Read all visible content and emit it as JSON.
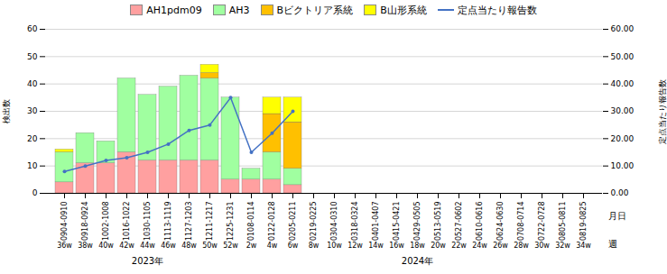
{
  "chart_data": {
    "type": "bar",
    "stacked": true,
    "categories": [
      "0904-0910",
      "0918-0924",
      "1002-1008",
      "1016-1022",
      "1030-1105",
      "1113-1119",
      "1127-1203",
      "1211-1217",
      "1225-1231",
      "0108-0114",
      "0122-0128",
      "0205-0211",
      "0219-0225",
      "0304-0310",
      "0318-0324",
      "0401-0407",
      "0415-0421",
      "0429-0505",
      "0513-0519",
      "0527-0602",
      "0610-0616",
      "0624-0630",
      "0708-0714",
      "0722-0728",
      "0805-0811",
      "0819-0825"
    ],
    "weeks": [
      "36w",
      "38w",
      "40w",
      "42w",
      "44w",
      "46w",
      "48w",
      "50w",
      "52w",
      "2w",
      "4w",
      "6w",
      "8w",
      "10w",
      "12w",
      "14w",
      "16w",
      "18w",
      "20w",
      "22w",
      "24w",
      "26w",
      "28w",
      "30w",
      "32w",
      "34w"
    ],
    "xlabel": "月日",
    "xlabel_week": "週",
    "ylabel": "検出数",
    "y2label": "定点当たり報告数",
    "annotations": [
      {
        "text": "2023年",
        "x": "1030-1105"
      },
      {
        "text": "2024年",
        "x": "0429-0505"
      }
    ],
    "series": [
      {
        "name": "AH1pdm09",
        "color": "#FFA0A0",
        "values": [
          4,
          11,
          11,
          15,
          12,
          12,
          12,
          12,
          5,
          5,
          5,
          3,
          0,
          0,
          0,
          0,
          0,
          0,
          0,
          0,
          0,
          0,
          0,
          0,
          0,
          0
        ]
      },
      {
        "name": "AH3",
        "color": "#A0FFA0",
        "values": [
          11,
          11,
          8,
          27,
          24,
          27,
          31,
          30,
          30,
          4,
          10,
          6,
          0,
          0,
          0,
          0,
          0,
          0,
          0,
          0,
          0,
          0,
          0,
          0,
          0,
          0
        ]
      },
      {
        "name": "Bビクトリア系統",
        "color": "#FFC000",
        "values": [
          0,
          0,
          0,
          0,
          0,
          0,
          0,
          2,
          0,
          0,
          14,
          17,
          0,
          0,
          0,
          0,
          0,
          0,
          0,
          0,
          0,
          0,
          0,
          0,
          0,
          0
        ]
      },
      {
        "name": "B山形系統",
        "color": "#FFFF00",
        "values": [
          1,
          0,
          0,
          0,
          0,
          0,
          0,
          3,
          0,
          0,
          6,
          9,
          0,
          0,
          0,
          0,
          0,
          0,
          0,
          0,
          0,
          0,
          0,
          0,
          0,
          0
        ]
      },
      {
        "name": "定点当たり報告数",
        "type": "line",
        "axis": "y2",
        "color": "#4472C4",
        "marker": "circle",
        "values": [
          8,
          10,
          12,
          13,
          15,
          18,
          23,
          25,
          35,
          15,
          22,
          30,
          null,
          null,
          null,
          null,
          null,
          null,
          null,
          null,
          null,
          null,
          null,
          null,
          null,
          null
        ]
      }
    ],
    "ylim": [
      0,
      60
    ],
    "yticks": [
      0,
      10,
      20,
      30,
      40,
      50,
      60
    ],
    "y2lim": [
      0,
      60
    ],
    "y2ticks": [
      {
        "value": 0,
        "label": "0.00"
      },
      {
        "value": 10,
        "label": "10.00"
      },
      {
        "value": 20,
        "label": "20.00"
      },
      {
        "value": 30,
        "label": "30.00"
      },
      {
        "value": 40,
        "label": "40.00"
      },
      {
        "value": 50,
        "label": "50.00"
      },
      {
        "value": 60,
        "label": "60.00"
      }
    ],
    "grid": true,
    "legend": "top"
  }
}
